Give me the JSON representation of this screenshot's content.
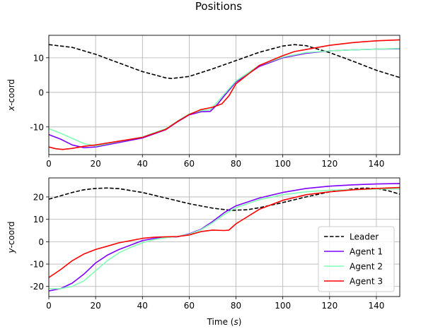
{
  "figure": {
    "title": "Positions",
    "xlabel_prefix": "Time (",
    "xlabel_var": "s",
    "xlabel_suffix": ")"
  },
  "chart_data": [
    {
      "type": "line",
      "title": "",
      "xlabel": "",
      "ylabel_var": "x",
      "ylabel_suffix": "-coord",
      "xlim": [
        0,
        150
      ],
      "ylim": [
        -18,
        16.5
      ],
      "xticks": [
        0,
        20,
        40,
        60,
        80,
        100,
        120,
        140
      ],
      "yticks": [
        -10,
        0,
        10
      ],
      "grid": true,
      "legend": "",
      "series": [
        {
          "name": "Leader",
          "color": "#000000",
          "dash": true,
          "points": [
            [
              0,
              13.8
            ],
            [
              10,
              13.0
            ],
            [
              20,
              11.0
            ],
            [
              30,
              8.5
            ],
            [
              40,
              6.0
            ],
            [
              50,
              4.2
            ],
            [
              52.5,
              4.0
            ],
            [
              60,
              4.6
            ],
            [
              70,
              6.8
            ],
            [
              80,
              9.2
            ],
            [
              90,
              11.6
            ],
            [
              100,
              13.4
            ],
            [
              105,
              13.8
            ],
            [
              110,
              13.5
            ],
            [
              120,
              11.5
            ],
            [
              130,
              9.0
            ],
            [
              140,
              6.4
            ],
            [
              150,
              4.3
            ]
          ]
        },
        {
          "name": "Agent 1",
          "color": "#7f00ff",
          "dash": false,
          "points": [
            [
              0,
              -12.2
            ],
            [
              5,
              -13.5
            ],
            [
              10,
              -15.2
            ],
            [
              15,
              -16.0
            ],
            [
              20,
              -15.8
            ],
            [
              30,
              -14.5
            ],
            [
              40,
              -13.2
            ],
            [
              50,
              -10.8
            ],
            [
              55,
              -8.5
            ],
            [
              60,
              -6.5
            ],
            [
              65,
              -5.6
            ],
            [
              69,
              -5.5
            ],
            [
              72,
              -3.5
            ],
            [
              75,
              -1.0
            ],
            [
              80,
              3.0
            ],
            [
              90,
              7.5
            ],
            [
              100,
              10.0
            ],
            [
              110,
              11.3
            ],
            [
              120,
              12.0
            ],
            [
              130,
              12.3
            ],
            [
              140,
              12.5
            ],
            [
              150,
              12.6
            ]
          ]
        },
        {
          "name": "Agent 2",
          "color": "#80ffb4",
          "dash": false,
          "points": [
            [
              0,
              -10.5
            ],
            [
              5,
              -11.8
            ],
            [
              10,
              -13.3
            ],
            [
              15,
              -14.8
            ],
            [
              20,
              -15.5
            ],
            [
              30,
              -14.2
            ],
            [
              40,
              -12.9
            ],
            [
              50,
              -10.5
            ],
            [
              55,
              -8.3
            ],
            [
              60,
              -6.2
            ],
            [
              65,
              -5.3
            ],
            [
              69,
              -5.0
            ],
            [
              72,
              -2.8
            ],
            [
              75,
              -0.5
            ],
            [
              80,
              3.3
            ],
            [
              90,
              7.8
            ],
            [
              100,
              10.2
            ],
            [
              110,
              11.5
            ],
            [
              120,
              12.0
            ],
            [
              130,
              12.3
            ],
            [
              140,
              12.5
            ],
            [
              150,
              12.7
            ]
          ]
        },
        {
          "name": "Agent 3",
          "color": "#ff0000",
          "dash": false,
          "points": [
            [
              0,
              -15.8
            ],
            [
              3,
              -16.3
            ],
            [
              6,
              -16.5
            ],
            [
              10,
              -16.2
            ],
            [
              15,
              -15.6
            ],
            [
              20,
              -15.2
            ],
            [
              30,
              -14.1
            ],
            [
              40,
              -13.0
            ],
            [
              50,
              -10.7
            ],
            [
              55,
              -8.4
            ],
            [
              60,
              -6.4
            ],
            [
              65,
              -5.0
            ],
            [
              70,
              -4.3
            ],
            [
              74,
              -3.3
            ],
            [
              77,
              -1.0
            ],
            [
              80,
              2.5
            ],
            [
              90,
              7.8
            ],
            [
              100,
              10.6
            ],
            [
              105,
              11.8
            ],
            [
              110,
              12.4
            ],
            [
              120,
              13.6
            ],
            [
              130,
              14.4
            ],
            [
              140,
              14.9
            ],
            [
              150,
              15.2
            ]
          ]
        }
      ]
    },
    {
      "type": "line",
      "title": "",
      "xlabel": "",
      "ylabel_var": "y",
      "ylabel_suffix": "-coord",
      "xlim": [
        0,
        150
      ],
      "ylim": [
        -24.5,
        28.5
      ],
      "xticks": [
        0,
        20,
        40,
        60,
        80,
        100,
        120,
        140
      ],
      "yticks": [
        -20,
        -10,
        0,
        10,
        20
      ],
      "grid": true,
      "legend": "bottom-right",
      "series": [
        {
          "name": "Leader",
          "color": "#000000",
          "dash": true,
          "points": [
            [
              0,
              19.0
            ],
            [
              5,
              20.5
            ],
            [
              10,
              22.0
            ],
            [
              15,
              23.2
            ],
            [
              20,
              23.8
            ],
            [
              25,
              24.0
            ],
            [
              30,
              23.7
            ],
            [
              40,
              22.0
            ],
            [
              50,
              19.5
            ],
            [
              60,
              17.0
            ],
            [
              70,
              15.0
            ],
            [
              78,
              14.0
            ],
            [
              85,
              14.3
            ],
            [
              90,
              15.2
            ],
            [
              100,
              17.5
            ],
            [
              110,
              20.0
            ],
            [
              120,
              22.3
            ],
            [
              130,
              23.6
            ],
            [
              135,
              24.0
            ],
            [
              140,
              23.7
            ],
            [
              145,
              22.8
            ],
            [
              150,
              21.2
            ]
          ]
        },
        {
          "name": "Agent 1",
          "color": "#7f00ff",
          "dash": false,
          "points": [
            [
              0,
              -22.0
            ],
            [
              5,
              -21.0
            ],
            [
              10,
              -18.5
            ],
            [
              15,
              -14.5
            ],
            [
              20,
              -9.5
            ],
            [
              25,
              -6.0
            ],
            [
              30,
              -3.5
            ],
            [
              35,
              -1.5
            ],
            [
              40,
              0.5
            ],
            [
              45,
              1.5
            ],
            [
              50,
              2.0
            ],
            [
              55,
              2.2
            ],
            [
              60,
              3.5
            ],
            [
              65,
              5.5
            ],
            [
              70,
              9.0
            ],
            [
              75,
              13.0
            ],
            [
              80,
              16.0
            ],
            [
              90,
              19.5
            ],
            [
              100,
              22.0
            ],
            [
              110,
              23.8
            ],
            [
              120,
              24.8
            ],
            [
              130,
              25.4
            ],
            [
              140,
              25.8
            ],
            [
              150,
              26.0
            ]
          ]
        },
        {
          "name": "Agent 2",
          "color": "#80ffb4",
          "dash": false,
          "points": [
            [
              0,
              -21.0
            ],
            [
              5,
              -21.0
            ],
            [
              10,
              -20.0
            ],
            [
              15,
              -17.5
            ],
            [
              20,
              -13.0
            ],
            [
              25,
              -8.5
            ],
            [
              30,
              -5.0
            ],
            [
              35,
              -2.5
            ],
            [
              40,
              -0.5
            ],
            [
              45,
              1.0
            ],
            [
              50,
              1.8
            ],
            [
              55,
              2.3
            ],
            [
              60,
              3.3
            ],
            [
              65,
              5.3
            ],
            [
              70,
              8.5
            ],
            [
              75,
              12.2
            ],
            [
              80,
              15.2
            ],
            [
              90,
              18.8
            ],
            [
              100,
              21.0
            ],
            [
              110,
              22.3
            ],
            [
              120,
              23.0
            ],
            [
              130,
              23.3
            ],
            [
              140,
              23.5
            ],
            [
              150,
              23.6
            ]
          ]
        },
        {
          "name": "Agent 3",
          "color": "#ff0000",
          "dash": false,
          "points": [
            [
              0,
              -16.0
            ],
            [
              5,
              -12.5
            ],
            [
              10,
              -8.5
            ],
            [
              15,
              -5.5
            ],
            [
              20,
              -3.5
            ],
            [
              25,
              -2.0
            ],
            [
              30,
              -0.5
            ],
            [
              35,
              0.5
            ],
            [
              40,
              1.5
            ],
            [
              45,
              2.0
            ],
            [
              50,
              2.2
            ],
            [
              55,
              2.3
            ],
            [
              60,
              3.0
            ],
            [
              65,
              4.5
            ],
            [
              70,
              5.2
            ],
            [
              75,
              5.0
            ],
            [
              77,
              5.2
            ],
            [
              80,
              8.0
            ],
            [
              90,
              14.5
            ],
            [
              100,
              18.5
            ],
            [
              110,
              21.0
            ],
            [
              120,
              22.3
            ],
            [
              130,
              23.2
            ],
            [
              140,
              23.8
            ],
            [
              150,
              24.2
            ]
          ]
        }
      ]
    }
  ]
}
